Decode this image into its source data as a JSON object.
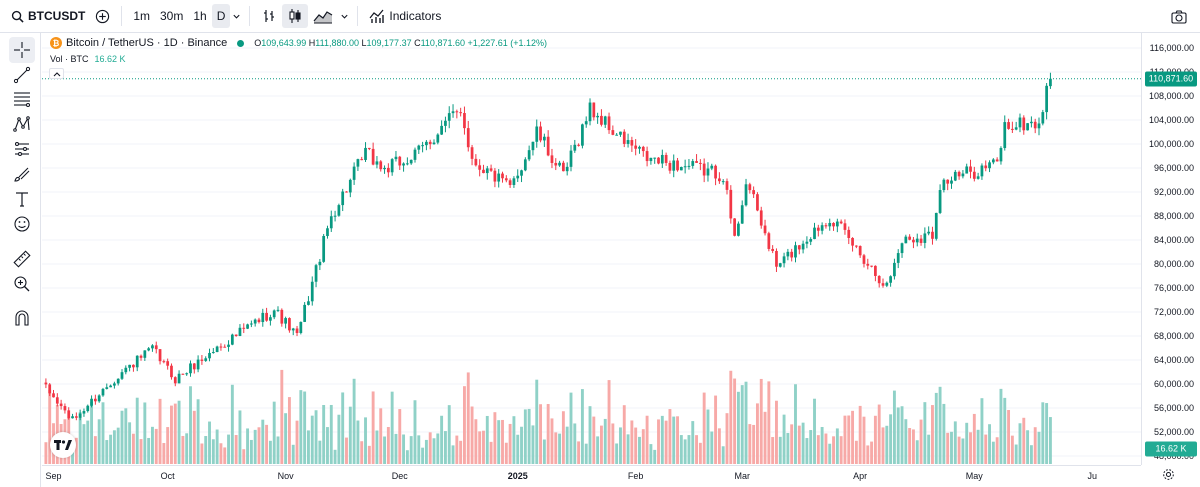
{
  "topbar": {
    "symbol": "BTCUSDT",
    "intervals": [
      "1m",
      "30m",
      "1h",
      "D"
    ],
    "active_interval": "D",
    "indicators_label": "Indicators"
  },
  "legend": {
    "title": "Bitcoin / TetherUS · 1D · Binance",
    "open": "109,643.99",
    "high": "111,880.00",
    "low": "109,177.37",
    "close": "110,871.60",
    "change": "+1,227.61 (+1.12%)",
    "vol_label": "Vol · BTC",
    "vol_value": "16.62 K"
  },
  "price_axis": {
    "labels": [
      "116,000.00",
      "112,000.00",
      "108,000.00",
      "104,000.00",
      "100,000.00",
      "96,000.00",
      "92,000.00",
      "88,000.00",
      "84,000.00",
      "80,000.00",
      "76,000.00",
      "72,000.00",
      "68,000.00",
      "64,000.00",
      "60,000.00",
      "56,000.00",
      "52,000.00",
      "48,000.00"
    ],
    "current_price_tag": "110,871.60",
    "volume_tag": "16.62 K"
  },
  "time_axis": {
    "labels": [
      {
        "text": "Sep",
        "bold": false
      },
      {
        "text": "Oct",
        "bold": false
      },
      {
        "text": "Nov",
        "bold": false
      },
      {
        "text": "Dec",
        "bold": false
      },
      {
        "text": "2025",
        "bold": true
      },
      {
        "text": "Feb",
        "bold": false
      },
      {
        "text": "Mar",
        "bold": false
      },
      {
        "text": "Apr",
        "bold": false
      },
      {
        "text": "May",
        "bold": false
      },
      {
        "text": "Ju",
        "bold": false
      }
    ]
  },
  "colors": {
    "up": "#089981",
    "down": "#f23645",
    "vol_up": "#8fd1c7",
    "vol_down": "#f7a9a7",
    "grid": "#f0f3fa",
    "price_line": "#089981"
  },
  "chart_data": {
    "type": "candlestick",
    "title": "Bitcoin / TetherUS · 1D · Binance",
    "y_range": [
      46000,
      118000
    ],
    "anchors": [
      {
        "date": "2024-08-30",
        "price": 59200
      },
      {
        "date": "2024-09-06",
        "price": 53900
      },
      {
        "date": "2024-09-18",
        "price": 61500
      },
      {
        "date": "2024-09-27",
        "price": 65800
      },
      {
        "date": "2024-10-03",
        "price": 60800
      },
      {
        "date": "2024-10-14",
        "price": 66000
      },
      {
        "date": "2024-10-21",
        "price": 69000
      },
      {
        "date": "2024-10-29",
        "price": 72400
      },
      {
        "date": "2024-11-04",
        "price": 67900
      },
      {
        "date": "2024-11-13",
        "price": 88000
      },
      {
        "date": "2024-11-22",
        "price": 98500
      },
      {
        "date": "2024-11-27",
        "price": 95700
      },
      {
        "date": "2024-12-05",
        "price": 98000
      },
      {
        "date": "2024-12-17",
        "price": 106000
      },
      {
        "date": "2024-12-20",
        "price": 97500
      },
      {
        "date": "2024-12-30",
        "price": 92500
      },
      {
        "date": "2025-01-06",
        "price": 102000
      },
      {
        "date": "2025-01-13",
        "price": 94500
      },
      {
        "date": "2025-01-20",
        "price": 106000
      },
      {
        "date": "2025-01-27",
        "price": 101500
      },
      {
        "date": "2025-02-04",
        "price": 97500
      },
      {
        "date": "2025-02-24",
        "price": 95000
      },
      {
        "date": "2025-02-27",
        "price": 84000
      },
      {
        "date": "2025-03-02",
        "price": 94000
      },
      {
        "date": "2025-03-10",
        "price": 79500
      },
      {
        "date": "2025-03-24",
        "price": 88000
      },
      {
        "date": "2025-04-08",
        "price": 76300
      },
      {
        "date": "2025-04-12",
        "price": 84000
      },
      {
        "date": "2025-04-20",
        "price": 85000
      },
      {
        "date": "2025-04-22",
        "price": 93500
      },
      {
        "date": "2025-05-07",
        "price": 96800
      },
      {
        "date": "2025-05-09",
        "price": 103000
      },
      {
        "date": "2025-05-18",
        "price": 103500
      },
      {
        "date": "2025-05-21",
        "price": 110871.6
      }
    ],
    "last_ohlc": {
      "open": 109643.99,
      "high": 111880.0,
      "low": 109177.37,
      "close": 110871.6
    },
    "last_volume": "16.62 K"
  }
}
